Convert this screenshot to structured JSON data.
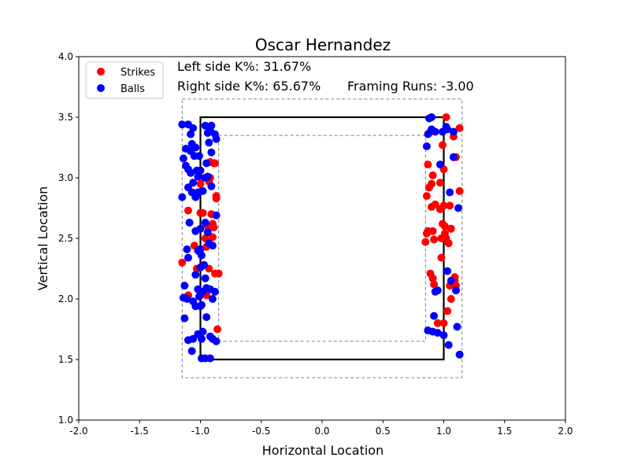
{
  "chart_data": {
    "type": "scatter",
    "title": "Oscar Hernandez",
    "xlabel": "Horizontal Location",
    "ylabel": "Vertical Location",
    "xlim": [
      -2.0,
      2.0
    ],
    "ylim": [
      1.0,
      4.0
    ],
    "xticks": [
      "-2.0",
      "-1.5",
      "-1.0",
      "-0.5",
      "0.0",
      "0.5",
      "1.0",
      "1.5",
      "2.0"
    ],
    "yticks": [
      "1.0",
      "1.5",
      "2.0",
      "2.5",
      "3.0",
      "3.5",
      "4.0"
    ],
    "legend_position": "top-left",
    "grid": false,
    "annotations": {
      "left_k": "Left side K%: 31.67%",
      "right_k": "Right side K%: 65.67%",
      "framing": "Framing Runs: -3.00"
    },
    "zones": {
      "strike_zone": {
        "x": [
          -1.0,
          1.0
        ],
        "y": [
          1.5,
          3.5
        ]
      },
      "outer_zone": {
        "x": [
          -1.15,
          1.15
        ],
        "y": [
          1.35,
          3.65
        ]
      },
      "inner_zone": {
        "x": [
          -0.85,
          0.85
        ],
        "y": [
          1.65,
          3.35
        ]
      }
    },
    "series": [
      {
        "name": "Strikes",
        "color": "#ff0000",
        "points": [
          [
            -1.15,
            2.3
          ],
          [
            -1.1,
            2.73
          ],
          [
            -1.1,
            2.03
          ],
          [
            -1.05,
            2.44
          ],
          [
            -1.03,
            2.25
          ],
          [
            -1.0,
            3.0
          ],
          [
            -1.0,
            2.95
          ],
          [
            -0.98,
            2.71
          ],
          [
            -0.96,
            2.5
          ],
          [
            -0.95,
            2.43
          ],
          [
            -0.95,
            2.03
          ],
          [
            -0.94,
            2.6
          ],
          [
            -0.93,
            2.25
          ],
          [
            -0.92,
            3.13
          ],
          [
            -0.92,
            3.0
          ],
          [
            -0.91,
            2.7
          ],
          [
            -0.9,
            2.62
          ],
          [
            -0.9,
            2.51
          ],
          [
            -0.89,
            2.59
          ],
          [
            -0.89,
            3.12
          ],
          [
            -0.88,
            3.12
          ],
          [
            -0.88,
            2.21
          ],
          [
            -0.87,
            2.83
          ],
          [
            -0.87,
            2.85
          ],
          [
            -0.86,
            1.75
          ],
          [
            -0.85,
            2.21
          ],
          [
            -1.0,
            2.71
          ],
          [
            -0.93,
            2.97
          ],
          [
            0.85,
            2.47
          ],
          [
            0.86,
            2.85
          ],
          [
            0.86,
            2.54
          ],
          [
            0.87,
            2.56
          ],
          [
            0.87,
            3.11
          ],
          [
            0.88,
            3.37
          ],
          [
            0.88,
            2.92
          ],
          [
            0.89,
            2.21
          ],
          [
            0.9,
            2.95
          ],
          [
            0.9,
            2.76
          ],
          [
            0.91,
            2.56
          ],
          [
            0.91,
            3.02
          ],
          [
            0.91,
            2.17
          ],
          [
            0.92,
            2.49
          ],
          [
            0.92,
            2.12
          ],
          [
            0.93,
            2.78
          ],
          [
            0.95,
            1.8
          ],
          [
            0.97,
            2.96
          ],
          [
            0.97,
            2.74
          ],
          [
            0.98,
            2.5
          ],
          [
            0.98,
            2.34
          ],
          [
            0.99,
            3.27
          ],
          [
            0.99,
            2.62
          ],
          [
            1.0,
            3.07
          ],
          [
            1.0,
            2.77
          ],
          [
            1.0,
            1.8
          ],
          [
            1.01,
            2.6
          ],
          [
            1.01,
            2.54
          ],
          [
            1.02,
            3.5
          ],
          [
            1.02,
            2.5
          ],
          [
            1.03,
            1.9
          ],
          [
            1.04,
            2.46
          ],
          [
            1.05,
            2.77
          ],
          [
            1.06,
            2.0
          ],
          [
            1.08,
            3.34
          ],
          [
            1.09,
            2.18
          ],
          [
            1.09,
            2.15
          ],
          [
            1.1,
            3.17
          ],
          [
            1.1,
            2.11
          ],
          [
            1.13,
            2.89
          ],
          [
            1.13,
            3.41
          ],
          [
            1.06,
            2.58
          ],
          [
            1.05,
            2.11
          ]
        ]
      },
      {
        "name": "Balls",
        "color": "#0000ff",
        "points": [
          [
            -1.15,
            2.84
          ],
          [
            -1.15,
            3.44
          ],
          [
            -1.14,
            3.16
          ],
          [
            -1.14,
            2.01
          ],
          [
            -1.13,
            2.11
          ],
          [
            -1.13,
            1.84
          ],
          [
            -1.12,
            3.24
          ],
          [
            -1.12,
            3.1
          ],
          [
            -1.11,
            2.41
          ],
          [
            -1.11,
            2.0
          ],
          [
            -1.1,
            3.44
          ],
          [
            -1.1,
            3.07
          ],
          [
            -1.1,
            2.92
          ],
          [
            -1.1,
            2.34
          ],
          [
            -1.1,
            1.66
          ],
          [
            -1.09,
            2.63
          ],
          [
            -1.08,
            3.36
          ],
          [
            -1.08,
            3.22
          ],
          [
            -1.08,
            3.04
          ],
          [
            -1.07,
            3.28
          ],
          [
            -1.07,
            2.88
          ],
          [
            -1.07,
            1.57
          ],
          [
            -1.06,
            3.41
          ],
          [
            -1.06,
            2.96
          ],
          [
            -1.06,
            1.98
          ],
          [
            -1.06,
            1.67
          ],
          [
            -1.05,
            3.18
          ],
          [
            -1.04,
            3.25
          ],
          [
            -1.04,
            2.84
          ],
          [
            -1.04,
            2.56
          ],
          [
            -1.04,
            2.2
          ],
          [
            -1.04,
            1.94
          ],
          [
            -1.03,
            3.06
          ],
          [
            -1.02,
            3.01
          ],
          [
            -1.02,
            2.88
          ],
          [
            -1.02,
            2.08
          ],
          [
            -1.02,
            1.71
          ],
          [
            -1.01,
            3.18
          ],
          [
            -1.01,
            2.39
          ],
          [
            -1.01,
            2.02
          ],
          [
            -1.0,
            3.06
          ],
          [
            -1.0,
            2.58
          ],
          [
            -1.0,
            2.41
          ],
          [
            -1.0,
            2.26
          ],
          [
            -1.0,
            1.94
          ],
          [
            -0.99,
            2.36
          ],
          [
            -0.99,
            1.95
          ],
          [
            -0.99,
            1.67
          ],
          [
            -0.99,
            1.51
          ],
          [
            -0.98,
            2.89
          ],
          [
            -0.98,
            2.06
          ],
          [
            -0.98,
            1.73
          ],
          [
            -0.96,
            3.43
          ],
          [
            -0.96,
            3.0
          ],
          [
            -0.96,
            2.63
          ],
          [
            -0.96,
            2.17
          ],
          [
            -0.96,
            1.51
          ],
          [
            -0.95,
            3.12
          ],
          [
            -0.95,
            2.09
          ],
          [
            -0.95,
            1.85
          ],
          [
            -0.94,
            3.37
          ],
          [
            -0.94,
            3.01
          ],
          [
            -0.94,
            2.55
          ],
          [
            -0.93,
            3.29
          ],
          [
            -0.93,
            2.46
          ],
          [
            -0.92,
            3.39
          ],
          [
            -0.92,
            2.08
          ],
          [
            -0.92,
            1.69
          ],
          [
            -0.92,
            1.51
          ],
          [
            -0.91,
            3.43
          ],
          [
            -0.91,
            3.21
          ],
          [
            -0.91,
            2.93
          ],
          [
            -0.9,
            2.44
          ],
          [
            -0.9,
            2.0
          ],
          [
            -0.9,
            1.67
          ],
          [
            -0.88,
            3.36
          ],
          [
            -0.88,
            2.06
          ],
          [
            -0.87,
            3.32
          ],
          [
            -0.87,
            2.69
          ],
          [
            -0.87,
            1.65
          ],
          [
            -0.97,
            2.28
          ],
          [
            -1.02,
            2.4
          ],
          [
            0.86,
            3.26
          ],
          [
            0.87,
            3.36
          ],
          [
            0.87,
            1.74
          ],
          [
            0.88,
            3.49
          ],
          [
            0.9,
            3.5
          ],
          [
            0.9,
            3.4
          ],
          [
            0.91,
            1.73
          ],
          [
            0.92,
            1.86
          ],
          [
            0.93,
            3.38
          ],
          [
            0.93,
            2.06
          ],
          [
            0.95,
            2.07
          ],
          [
            0.95,
            1.72
          ],
          [
            0.97,
            3.11
          ],
          [
            0.99,
            3.38
          ],
          [
            1.0,
            1.7
          ],
          [
            1.02,
            3.42
          ],
          [
            1.03,
            3.4
          ],
          [
            1.03,
            2.23
          ],
          [
            1.04,
            1.62
          ],
          [
            1.05,
            2.88
          ],
          [
            1.06,
            2.15
          ],
          [
            1.08,
            3.38
          ],
          [
            1.08,
            3.17
          ],
          [
            1.1,
            2.07
          ],
          [
            1.11,
            1.77
          ],
          [
            1.12,
            2.75
          ],
          [
            1.13,
            1.54
          ]
        ]
      }
    ]
  }
}
